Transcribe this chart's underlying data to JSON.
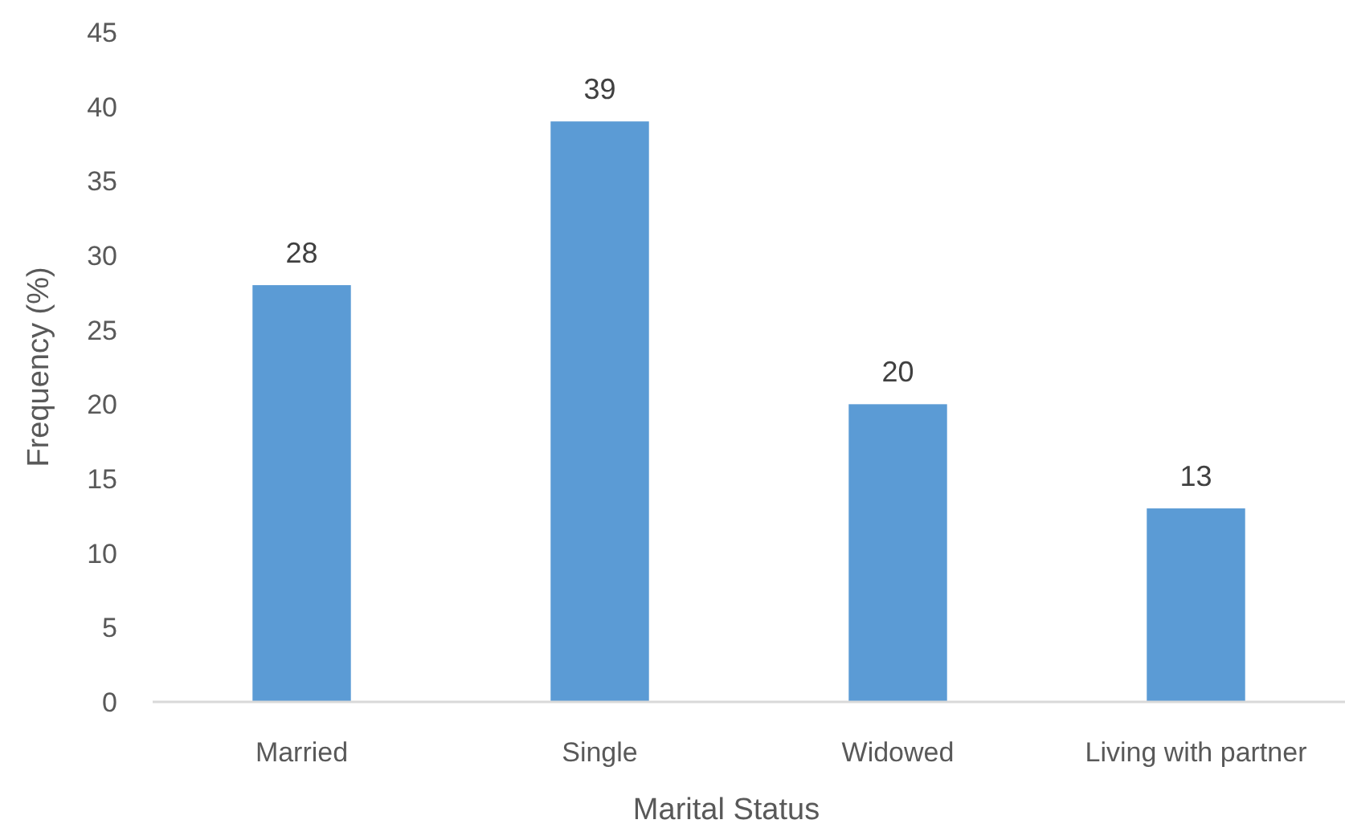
{
  "chart_data": {
    "type": "bar",
    "xlabel": "Marital Status",
    "ylabel": "Frequency (%)",
    "categories": [
      "Married",
      "Single",
      "Widowed",
      "Living with partner"
    ],
    "values": [
      28,
      39,
      20,
      13
    ],
    "color": "#5b9bd5",
    "ylim": [
      0,
      45
    ],
    "yticks": [
      0,
      5,
      10,
      15,
      20,
      25,
      30,
      35,
      40,
      45
    ],
    "grid": false,
    "data_labels": true
  }
}
